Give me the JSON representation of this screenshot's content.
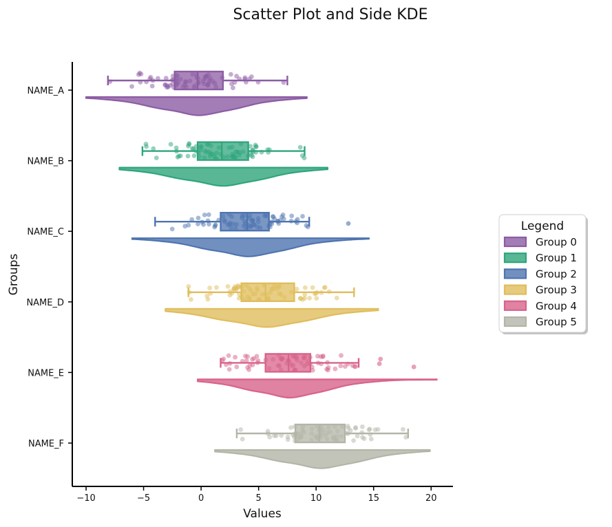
{
  "chart_data": {
    "type": "raincloud",
    "title": "Scatter Plot and Side KDE",
    "xlabel": "Values",
    "ylabel": "Groups",
    "xlim": [
      -11.2,
      21.9
    ],
    "xticks": [
      -10,
      -5,
      0,
      5,
      10,
      15,
      20
    ],
    "xtick_labels": [
      "−10",
      "−5",
      "0",
      "5",
      "10",
      "15",
      "20"
    ],
    "categories": [
      "NAME_A",
      "NAME_B",
      "NAME_C",
      "NAME_D",
      "NAME_E",
      "NAME_F"
    ],
    "legend": {
      "title": "Legend",
      "location": "center-right, outside plot",
      "entries": [
        "Group 0",
        "Group 1",
        "Group 2",
        "Group 3",
        "Group 4",
        "Group 5"
      ]
    },
    "series": [
      {
        "name": "Group 0",
        "category": "NAME_A",
        "color": "#8c5ca3",
        "whisker_low": -8.1,
        "q1": -2.3,
        "median": -0.3,
        "q3": 1.9,
        "whisker_high": 7.5,
        "kde_range": [
          -10.0,
          9.2
        ]
      },
      {
        "name": "Group 1",
        "category": "NAME_B",
        "color": "#2fa57c",
        "whisker_low": -5.1,
        "q1": -0.3,
        "median": 1.8,
        "q3": 4.1,
        "whisker_high": 9.0,
        "kde_range": [
          -7.1,
          11.0
        ]
      },
      {
        "name": "Group 2",
        "category": "NAME_C",
        "color": "#4e74b0",
        "whisker_low": -4.0,
        "q1": 1.7,
        "median": 4.0,
        "q3": 5.9,
        "whisker_high": 9.4,
        "outliers": [
          12.8
        ],
        "kde_range": [
          -6.0,
          14.6
        ]
      },
      {
        "name": "Group 3",
        "category": "NAME_D",
        "color": "#e0bd5c",
        "whisker_low": -1.1,
        "q1": 3.5,
        "median": 5.6,
        "q3": 8.1,
        "whisker_high": 13.3,
        "kde_range": [
          -3.1,
          15.4
        ]
      },
      {
        "name": "Group 4",
        "category": "NAME_E",
        "color": "#d8638a",
        "whisker_low": 1.7,
        "q1": 5.6,
        "median": 7.6,
        "q3": 9.5,
        "whisker_high": 13.7,
        "outliers": [
          15.5,
          15.6,
          18.5
        ],
        "kde_range": [
          -0.3,
          20.5
        ]
      },
      {
        "name": "Group 5",
        "category": "NAME_F",
        "color": "#b3b5a8",
        "whisker_low": 3.1,
        "q1": 8.2,
        "median": 10.3,
        "q3": 12.5,
        "whisker_high": 18.0,
        "kde_range": [
          1.2,
          19.9
        ]
      }
    ]
  }
}
